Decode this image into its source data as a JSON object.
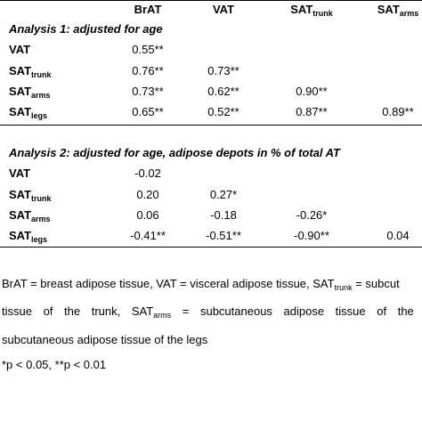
{
  "table": {
    "header": [
      {
        "text": "BrAT"
      },
      {
        "text": "VAT"
      },
      {
        "text": "SAT",
        "sub": "trunk"
      },
      {
        "text": "SAT",
        "sub": "arms"
      }
    ],
    "sections": [
      {
        "title": "Analysis 1: adjusted for age",
        "rows": [
          {
            "label": {
              "text": "VAT"
            },
            "cells": [
              "0.55**"
            ]
          },
          {
            "label": {
              "text": "SAT",
              "sub": "trunk"
            },
            "cells": [
              "0.76**",
              "0.73**"
            ]
          },
          {
            "label": {
              "text": "SAT",
              "sub": "arms"
            },
            "cells": [
              "0.73**",
              "0.62**",
              "0.90**"
            ]
          },
          {
            "label": {
              "text": "SAT",
              "sub": "legs"
            },
            "cells": [
              "0.65**",
              "0.52**",
              "0.87**",
              "0.89**"
            ]
          }
        ]
      },
      {
        "title": "Analysis 2: adjusted for age, adipose depots in % of total AT",
        "rows": [
          {
            "label": {
              "text": "VAT"
            },
            "cells": [
              "-0.02"
            ]
          },
          {
            "label": {
              "text": "SAT",
              "sub": "trunk"
            },
            "cells": [
              "0.20",
              "0.27*"
            ]
          },
          {
            "label": {
              "text": "SAT",
              "sub": "arms"
            },
            "cells": [
              "0.06",
              "-0.18",
              "-0.26*"
            ]
          },
          {
            "label": {
              "text": "SAT",
              "sub": "legs"
            },
            "cells": [
              "-0.41**",
              "-0.51**",
              "-0.90**",
              "0.04"
            ]
          }
        ]
      }
    ]
  },
  "footnote": {
    "lines": [
      [
        {
          "text": "BrAT = breast adipose tissue, VAT = visceral adipose tissue, SAT"
        },
        {
          "sub": "trunk"
        },
        {
          "text": " = subcut"
        }
      ],
      [
        {
          "text": "tissue of the trunk, SAT"
        },
        {
          "sub": "arms"
        },
        {
          "text": " = subcutaneous adipose tissue of the a"
        }
      ],
      [
        {
          "text": "subcutaneous adipose tissue of the legs"
        }
      ],
      [
        {
          "text": "*p < 0.05, **p < 0.01"
        }
      ]
    ]
  }
}
